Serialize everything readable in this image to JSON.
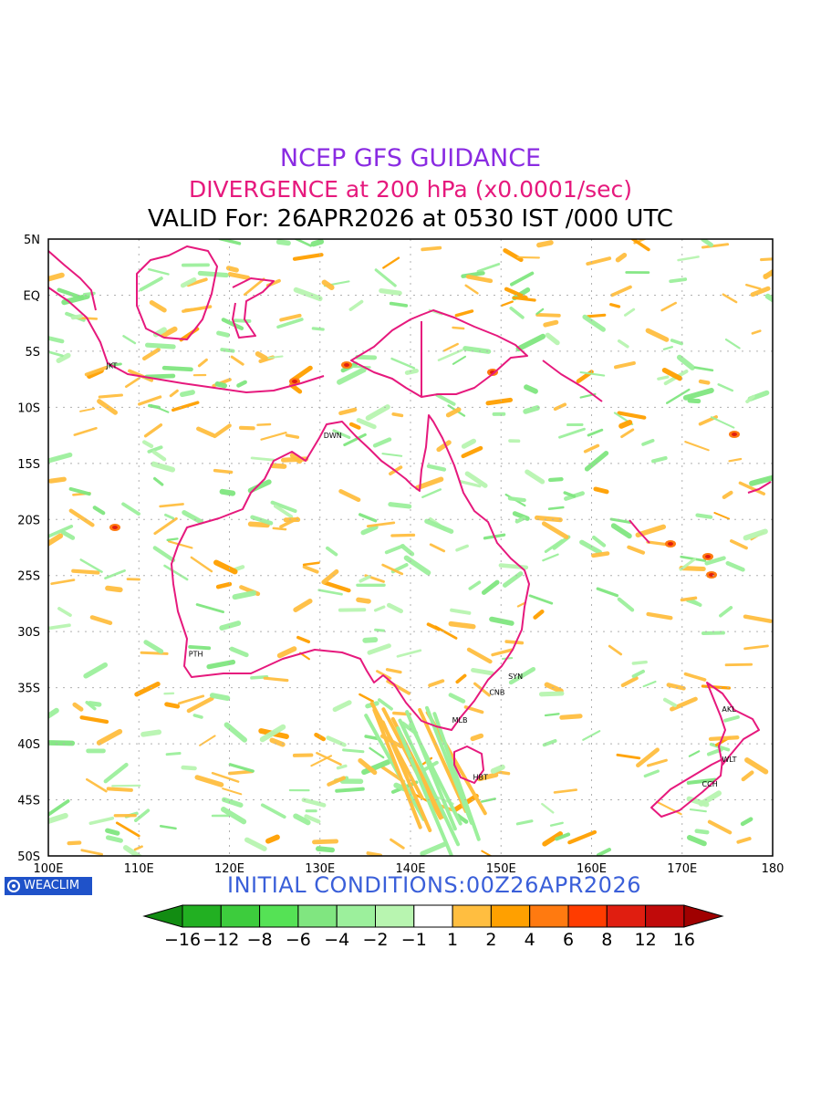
{
  "titles": {
    "line1": "NCEP GFS GUIDANCE",
    "line2": "DIVERGENCE at 200 hPa (x0.0001/sec)",
    "line3": "VALID For: 26APR2026 at 0530 IST /000 UTC"
  },
  "axes": {
    "lat_labels": [
      "5N",
      "EQ",
      "5S",
      "10S",
      "15S",
      "20S",
      "25S",
      "30S",
      "35S",
      "40S",
      "45S",
      "50S"
    ],
    "lat_values": [
      5,
      0,
      -5,
      -10,
      -15,
      -20,
      -25,
      -30,
      -35,
      -40,
      -45,
      -50
    ],
    "lon_labels": [
      "100E",
      "110E",
      "120E",
      "130E",
      "140E",
      "150E",
      "160E",
      "170E",
      "180"
    ],
    "lon_values": [
      100,
      110,
      120,
      130,
      140,
      150,
      160,
      170,
      180
    ]
  },
  "cities": [
    {
      "label": "JKT",
      "lon": 106.8,
      "lat": -6.2
    },
    {
      "label": "DWN",
      "lon": 130.8,
      "lat": -12.4
    },
    {
      "label": "PTH",
      "lon": 115.9,
      "lat": -31.9
    },
    {
      "label": "SYN",
      "lon": 151.2,
      "lat": -33.9
    },
    {
      "label": "CNB",
      "lon": 149.1,
      "lat": -35.3
    },
    {
      "label": "MLB",
      "lon": 145.0,
      "lat": -37.8
    },
    {
      "label": "HBT",
      "lon": 147.3,
      "lat": -42.9
    },
    {
      "label": "AKL",
      "lon": 174.8,
      "lat": -36.8
    },
    {
      "label": "WLT",
      "lon": 174.8,
      "lat": -41.3
    },
    {
      "label": "CCH",
      "lon": 172.6,
      "lat": -43.5
    }
  ],
  "colorbar": {
    "labels": [
      "-16",
      "-12",
      "-8",
      "-6",
      "-4",
      "-2",
      "-1",
      "1",
      "2",
      "4",
      "6",
      "8",
      "12",
      "16"
    ],
    "colors": [
      "#128c12",
      "#22b022",
      "#3dcc3d",
      "#55e255",
      "#80e680",
      "#9cf09c",
      "#b8f5b0",
      "#ffffff",
      "#ffbe40",
      "#ffa000",
      "#ff7a10",
      "#ff3c00",
      "#e01e10",
      "#c00a0a",
      "#a00000"
    ]
  },
  "colors": {
    "coastline": "#e6197d",
    "grid": "#b0b0b0",
    "green_field": "#9cf09c",
    "orange_field": "#ffbe40"
  },
  "badge": {
    "text": "WEACLIM"
  },
  "initial_conditions": "INITIAL CONDITIONS:00Z26APR2026"
}
